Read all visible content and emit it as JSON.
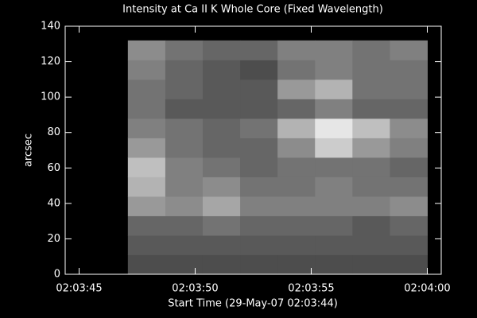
{
  "chart_data": {
    "type": "image",
    "title": "Intensity at Ca II K Whole Core (Fixed Wavelength)",
    "xlabel": "Start Time (29-May-07 02:03:44)",
    "ylabel": "arcsec",
    "xlim": [
      0.4,
      16.6
    ],
    "ylim": [
      0,
      140
    ],
    "xticks": [
      {
        "value": 1,
        "label": "02:03:45"
      },
      {
        "value": 6,
        "label": "02:03:50"
      },
      {
        "value": 11,
        "label": "02:03:55"
      },
      {
        "value": 16,
        "label": "02:04:00"
      }
    ],
    "yticks": [
      0,
      20,
      40,
      60,
      80,
      100,
      120,
      140
    ],
    "x_extent": [
      3.1,
      16
    ],
    "y_extent": [
      0,
      132
    ],
    "z": [
      [
        0.3,
        0.3,
        0.3,
        0.3,
        0.3,
        0.3,
        0.3,
        0.3
      ],
      [
        0.35,
        0.35,
        0.35,
        0.35,
        0.35,
        0.35,
        0.35,
        0.35
      ],
      [
        0.4,
        0.4,
        0.45,
        0.4,
        0.4,
        0.4,
        0.35,
        0.4
      ],
      [
        0.6,
        0.55,
        0.65,
        0.5,
        0.5,
        0.5,
        0.5,
        0.55
      ],
      [
        0.7,
        0.5,
        0.55,
        0.45,
        0.45,
        0.5,
        0.45,
        0.45
      ],
      [
        0.75,
        0.5,
        0.45,
        0.4,
        0.45,
        0.45,
        0.45,
        0.4
      ],
      [
        0.6,
        0.45,
        0.4,
        0.4,
        0.55,
        0.8,
        0.6,
        0.5
      ],
      [
        0.5,
        0.45,
        0.4,
        0.45,
        0.7,
        0.9,
        0.75,
        0.55
      ],
      [
        0.45,
        0.35,
        0.35,
        0.35,
        0.4,
        0.5,
        0.4,
        0.4
      ],
      [
        0.45,
        0.4,
        0.35,
        0.35,
        0.6,
        0.7,
        0.45,
        0.45
      ],
      [
        0.5,
        0.4,
        0.35,
        0.3,
        0.45,
        0.5,
        0.45,
        0.45
      ],
      [
        0.55,
        0.45,
        0.4,
        0.4,
        0.5,
        0.5,
        0.45,
        0.5
      ]
    ]
  }
}
